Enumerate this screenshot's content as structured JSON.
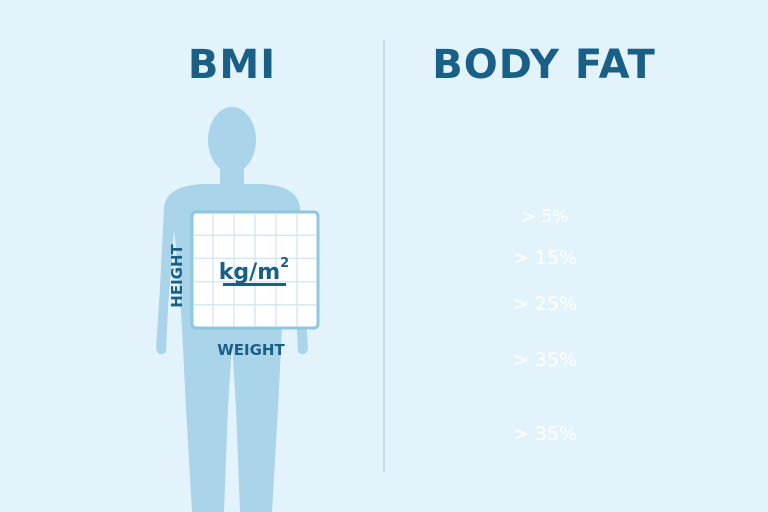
{
  "left": {
    "title": "BMI",
    "unit": "kg/m",
    "unit_exp": "2",
    "y_axis_label": "HEIGHT",
    "x_axis_label": "WEIGHT"
  },
  "right": {
    "title": "BODY FAT",
    "bands": [
      {
        "label": "> 5%",
        "color": "#a9e1d3"
      },
      {
        "label": "> 15%",
        "color": "#7fd0c2"
      },
      {
        "label": "> 25%",
        "color": "#3cb8b1"
      },
      {
        "label": "> 35%",
        "color": "#1f98a0"
      },
      {
        "label": "> 35%",
        "color": "#0d6f8f"
      }
    ]
  },
  "colors": {
    "background": "#e3f3fc",
    "title": "#1a5f85",
    "silhouette": "#a9d4ea"
  }
}
